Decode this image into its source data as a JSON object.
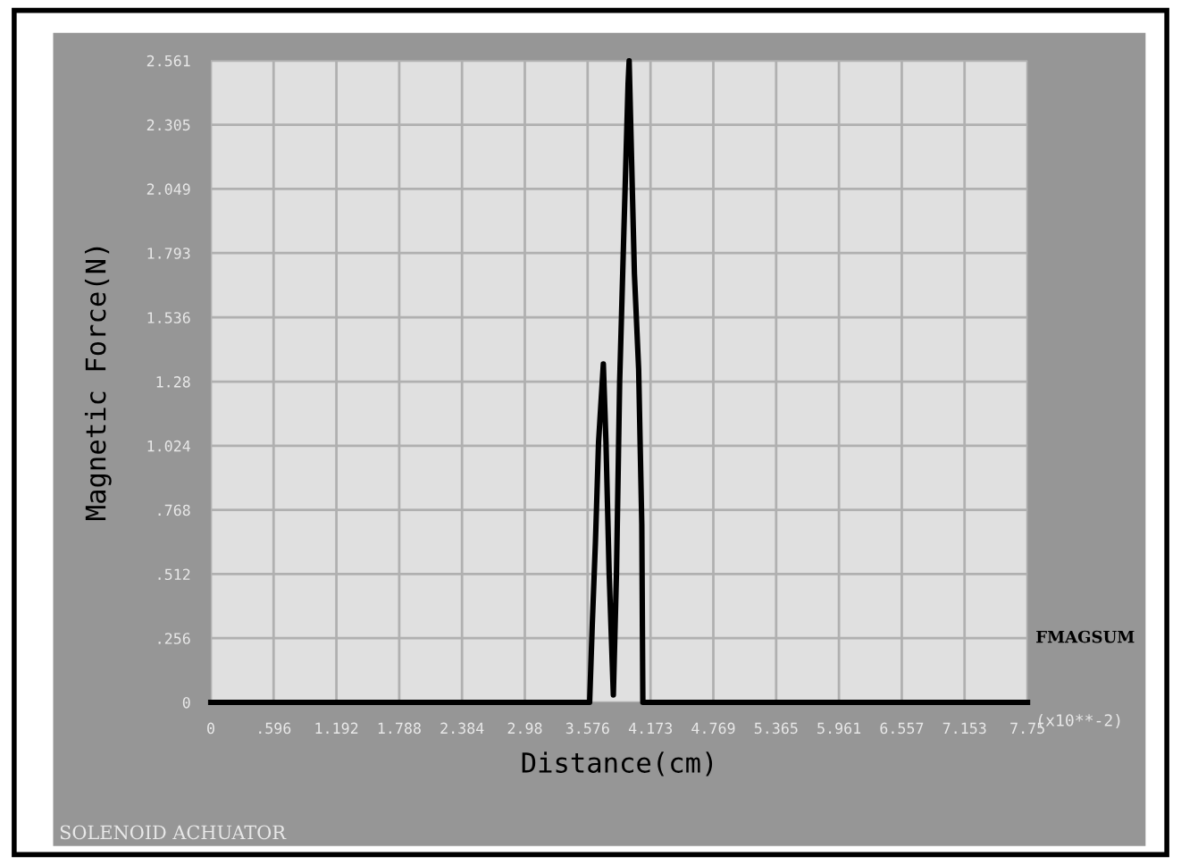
{
  "chart_data": {
    "type": "line",
    "title": "SOLENOID ACHUATOR",
    "xlabel": "Distance(cm)",
    "ylabel": "Magnetic Force(N)",
    "annotations": [
      "(x10**-2)"
    ],
    "series": [
      {
        "name": "FMAGSUM",
        "color": "#000000",
        "x": [
          0,
          3.595,
          3.62,
          3.65,
          3.68,
          3.725,
          3.75,
          3.78,
          3.82,
          3.85,
          3.88,
          3.92,
          3.96,
          3.97,
          4.02,
          4.06,
          4.09,
          4.1,
          7.75
        ],
        "values": [
          0,
          0,
          0.31,
          0.64,
          1.04,
          1.35,
          1.04,
          0.52,
          0.03,
          0.52,
          1.28,
          1.88,
          2.47,
          2.56,
          1.71,
          1.33,
          0.71,
          0,
          0
        ]
      }
    ],
    "xlim": [
      0,
      7.75
    ],
    "xticks": [
      0,
      {
        "value": 0.596,
        "label": ".596"
      },
      1.192,
      1.788,
      2.384,
      2.98,
      3.576,
      4.173,
      4.769,
      5.365,
      5.961,
      6.557,
      7.153,
      7.75
    ],
    "ylim": [
      0,
      2.561
    ],
    "yticks": [
      0,
      {
        "value": 0.256,
        "label": ".256"
      },
      {
        "value": 0.512,
        "label": ".512"
      },
      {
        "value": 0.768,
        "label": ".768"
      },
      1.024,
      1.28,
      1.536,
      1.793,
      2.049,
      2.305,
      2.561
    ],
    "grid": true,
    "legend": false,
    "marker": "none",
    "line_style": "solid"
  }
}
